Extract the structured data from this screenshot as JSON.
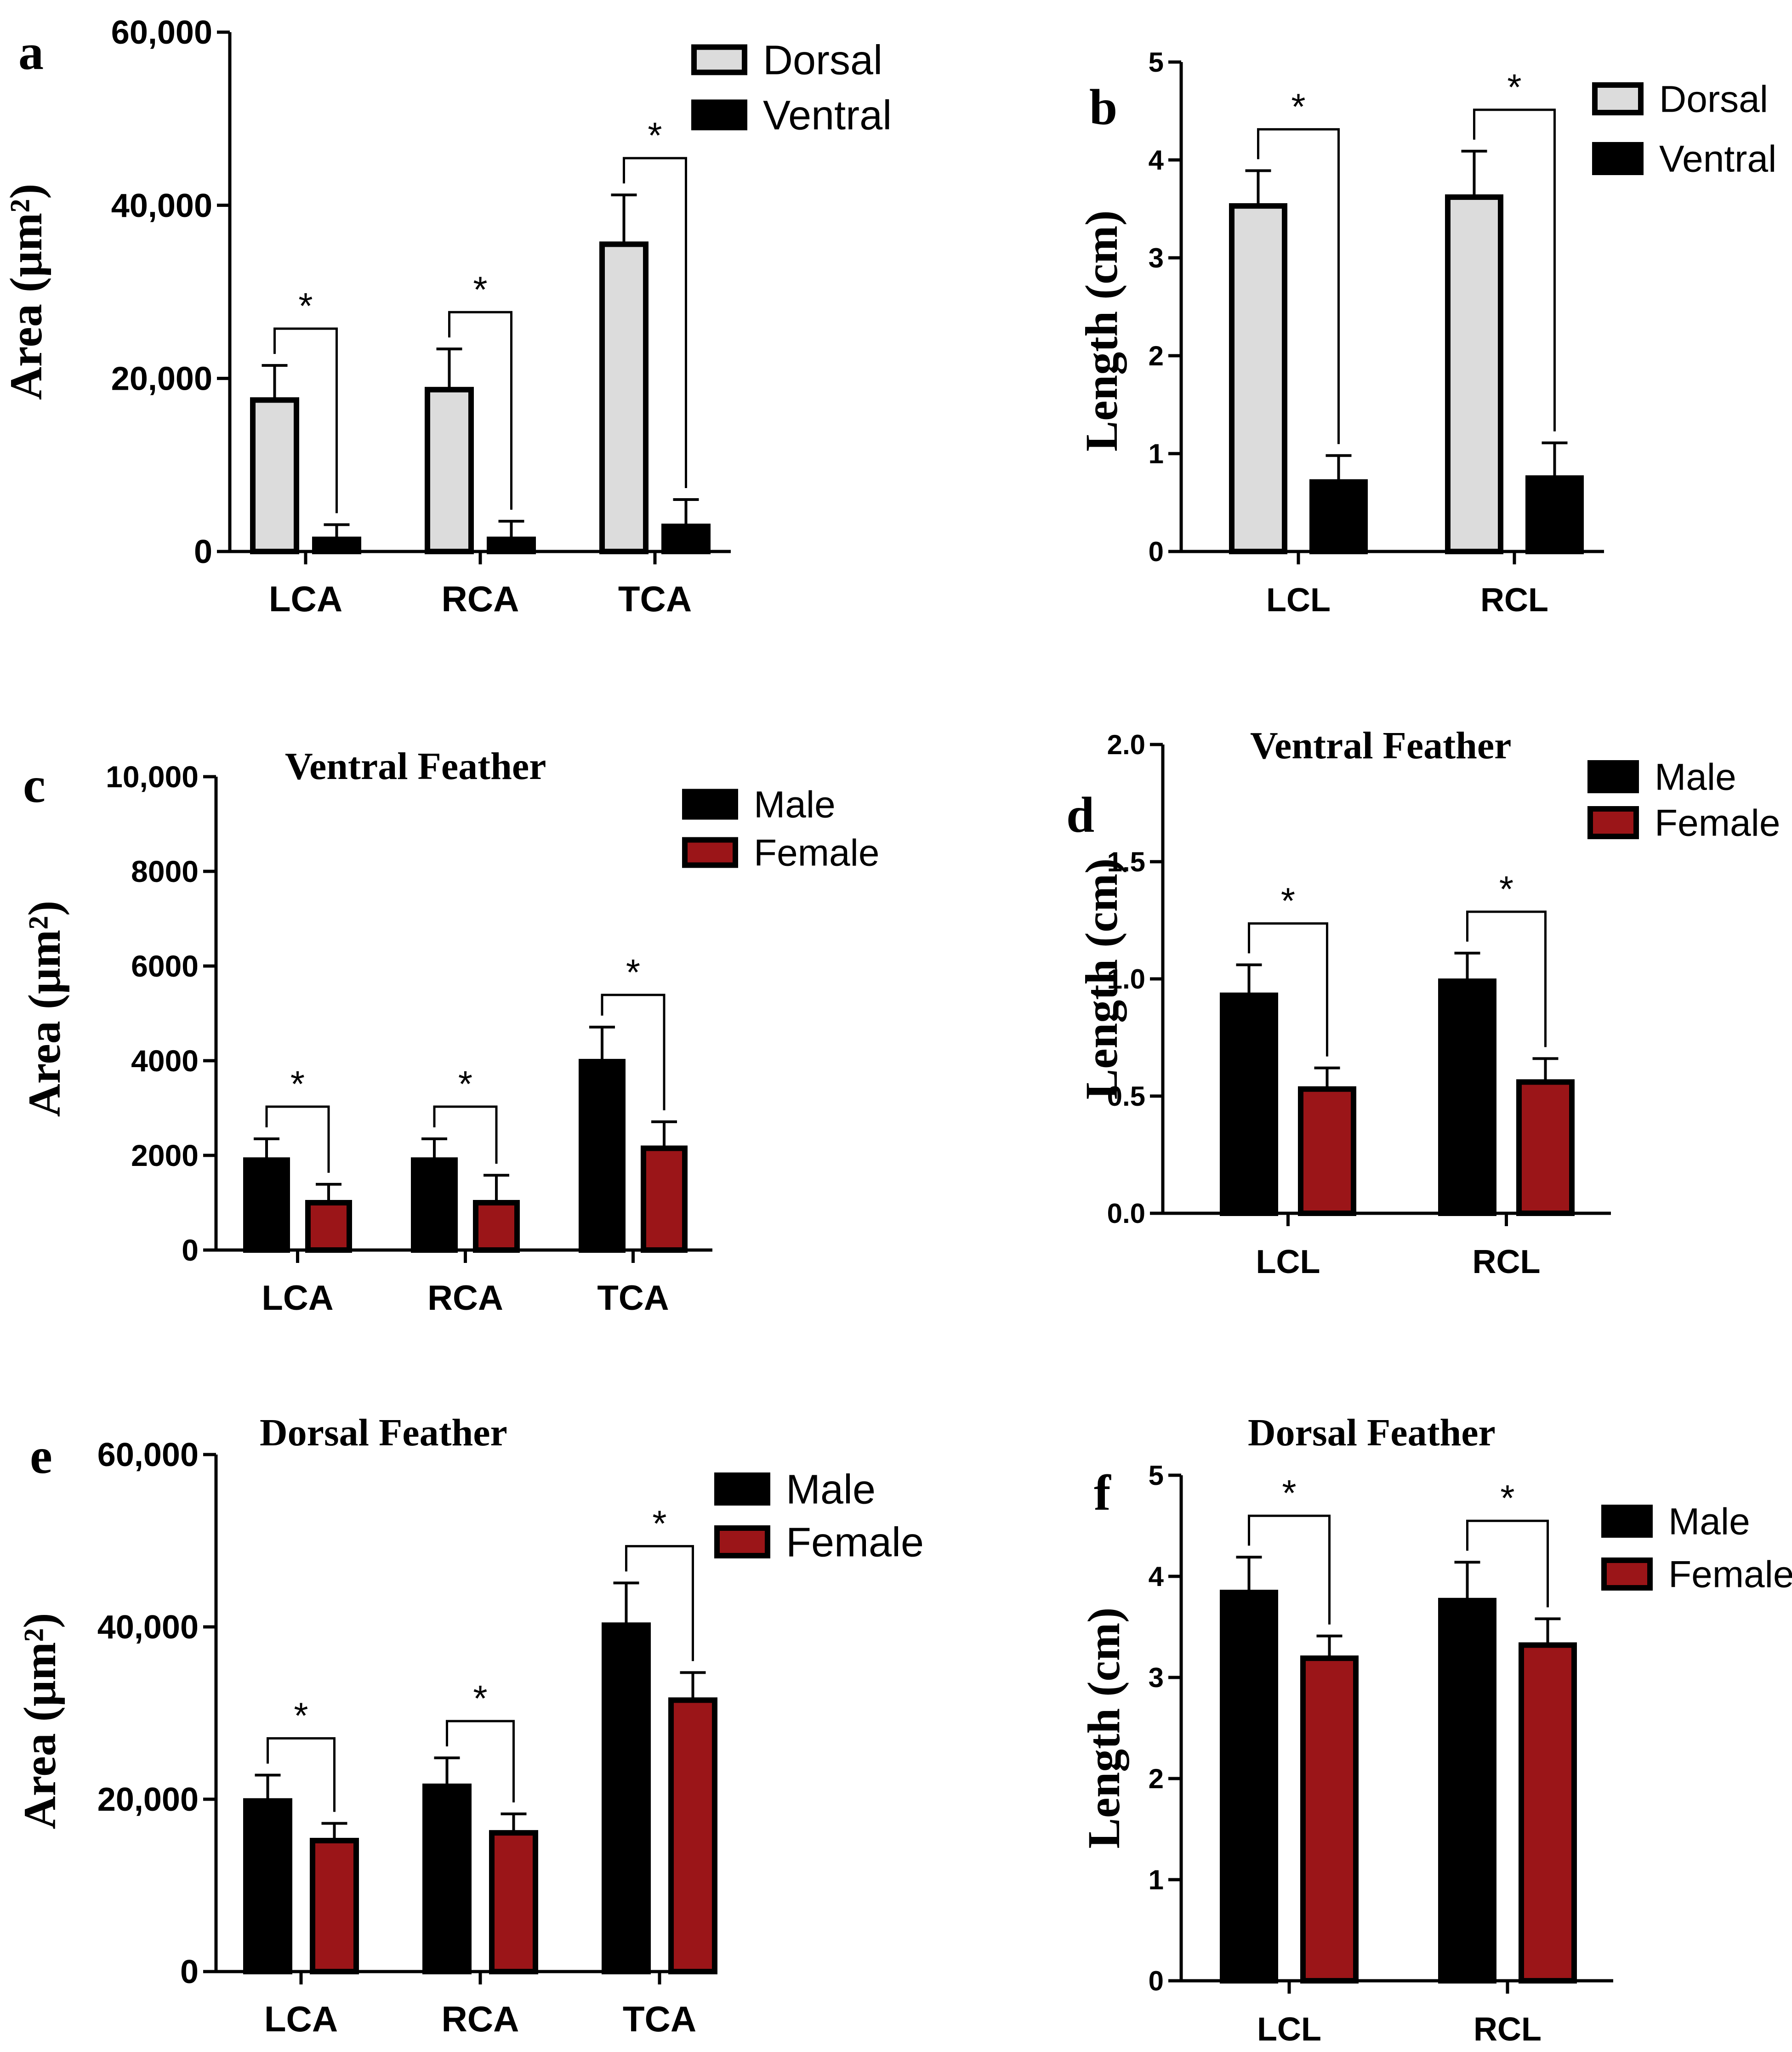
{
  "colors": {
    "dorsal_fill": "#dcdcdc",
    "ventral_fill": "#000000",
    "male_fill": "#000000",
    "female_fill": "#9b1518",
    "axis": "#000000",
    "bar_stroke": "#000000"
  },
  "chart_data": [
    {
      "panel_letter": "a",
      "type": "bar",
      "title": "",
      "ylabel": "Area (μm²)",
      "xlabel": "",
      "categories": [
        "LCA",
        "RCA",
        "TCA"
      ],
      "ylim": [
        0,
        60000
      ],
      "yticks": [
        0,
        20000,
        40000,
        60000
      ],
      "ytick_labels": [
        "0",
        "20,000",
        "40,000",
        "60,000"
      ],
      "series": [
        {
          "name": "Dorsal",
          "color_key": "dorsal_fill",
          "values": [
            17500,
            18700,
            35500
          ],
          "errors": [
            4000,
            4700,
            5700
          ]
        },
        {
          "name": "Ventral",
          "color_key": "ventral_fill",
          "values": [
            1400,
            1400,
            2900
          ],
          "errors": [
            1700,
            2100,
            3100
          ]
        }
      ],
      "significance": [
        "*",
        "*",
        "*"
      ],
      "legend_position": "top-right"
    },
    {
      "panel_letter": "b",
      "type": "bar",
      "title": "",
      "ylabel": "Length (cm)",
      "xlabel": "",
      "categories": [
        "LCL",
        "RCL"
      ],
      "ylim": [
        0,
        5
      ],
      "yticks": [
        0,
        1,
        2,
        3,
        4,
        5
      ],
      "ytick_labels": [
        "0",
        "1",
        "2",
        "3",
        "4",
        "5"
      ],
      "series": [
        {
          "name": "Dorsal",
          "color_key": "dorsal_fill",
          "values": [
            3.53,
            3.62
          ],
          "errors": [
            0.36,
            0.47
          ]
        },
        {
          "name": "Ventral",
          "color_key": "ventral_fill",
          "values": [
            0.71,
            0.75
          ],
          "errors": [
            0.27,
            0.36
          ]
        }
      ],
      "significance": [
        "*",
        "*"
      ],
      "legend_position": "top-right"
    },
    {
      "panel_letter": "c",
      "type": "bar",
      "title": "Ventral Feather",
      "ylabel": "Area (μm²)",
      "xlabel": "",
      "categories": [
        "LCA",
        "RCA",
        "TCA"
      ],
      "ylim": [
        0,
        10000
      ],
      "yticks": [
        0,
        2000,
        4000,
        6000,
        8000,
        10000
      ],
      "ytick_labels": [
        "0",
        "2000",
        "4000",
        "6000",
        "8000",
        "10,000"
      ],
      "series": [
        {
          "name": "Male",
          "color_key": "male_fill",
          "values": [
            1900,
            1900,
            3980
          ],
          "errors": [
            450,
            450,
            730
          ]
        },
        {
          "name": "Female",
          "color_key": "female_fill",
          "values": [
            1000,
            1000,
            2150
          ],
          "errors": [
            390,
            580,
            560
          ]
        }
      ],
      "significance": [
        "*",
        "*",
        "*"
      ],
      "legend_position": "top-right"
    },
    {
      "panel_letter": "d",
      "type": "bar",
      "title": "Ventral Feather",
      "ylabel": "Length (cm)",
      "xlabel": "",
      "categories": [
        "LCL",
        "RCL"
      ],
      "ylim": [
        0,
        2.0
      ],
      "yticks": [
        0,
        0.5,
        1.0,
        1.5,
        2.0
      ],
      "ytick_labels": [
        "0.0",
        "0.5",
        "1.0",
        "1.5",
        "2.0"
      ],
      "series": [
        {
          "name": "Male",
          "color_key": "male_fill",
          "values": [
            0.93,
            0.99
          ],
          "errors": [
            0.13,
            0.12
          ]
        },
        {
          "name": "Female",
          "color_key": "female_fill",
          "values": [
            0.53,
            0.56
          ],
          "errors": [
            0.09,
            0.1
          ]
        }
      ],
      "significance": [
        "*",
        "*"
      ],
      "legend_position": "top-right"
    },
    {
      "panel_letter": "e",
      "type": "bar",
      "title": "Dorsal Feather",
      "ylabel": "Area (μm²)",
      "xlabel": "",
      "categories": [
        "LCA",
        "RCA",
        "TCA"
      ],
      "ylim": [
        0,
        60000
      ],
      "yticks": [
        0,
        20000,
        40000,
        60000
      ],
      "ytick_labels": [
        "0",
        "20,000",
        "40,000",
        "60,000"
      ],
      "series": [
        {
          "name": "Male",
          "color_key": "male_fill",
          "values": [
            19800,
            21500,
            40200
          ],
          "errors": [
            3000,
            3300,
            4900
          ]
        },
        {
          "name": "Female",
          "color_key": "female_fill",
          "values": [
            15200,
            16100,
            31500
          ],
          "errors": [
            2000,
            2200,
            3200
          ]
        }
      ],
      "significance": [
        "*",
        "*",
        "*"
      ],
      "legend_position": "top-right"
    },
    {
      "panel_letter": "f",
      "type": "bar",
      "title": "Dorsal Feather",
      "ylabel": "Length (cm)",
      "xlabel": "",
      "categories": [
        "LCL",
        "RCL"
      ],
      "ylim": [
        0,
        5
      ],
      "yticks": [
        0,
        1,
        2,
        3,
        4,
        5
      ],
      "ytick_labels": [
        "0",
        "1",
        "2",
        "3",
        "4",
        "5"
      ],
      "series": [
        {
          "name": "Male",
          "color_key": "male_fill",
          "values": [
            3.84,
            3.76
          ],
          "errors": [
            0.35,
            0.38
          ]
        },
        {
          "name": "Female",
          "color_key": "female_fill",
          "values": [
            3.19,
            3.32
          ],
          "errors": [
            0.22,
            0.26
          ]
        }
      ],
      "significance": [
        "*",
        "*"
      ],
      "legend_position": "top-right"
    }
  ]
}
